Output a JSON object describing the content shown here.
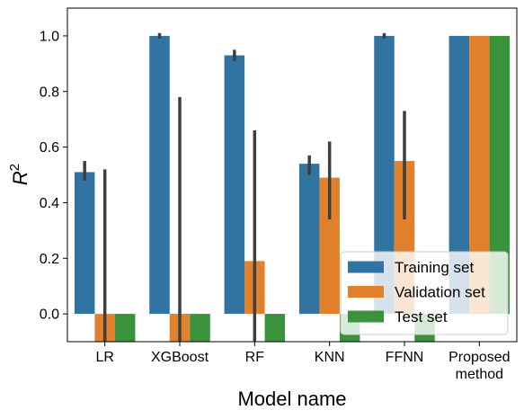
{
  "chart_data": {
    "type": "bar",
    "xlabel": "Model name",
    "ylabel": "R",
    "ylabel_sup": "2",
    "ylim": [
      -0.1,
      1.1
    ],
    "yticks": [
      "0.0",
      "0.2",
      "0.4",
      "0.6",
      "0.8",
      "1.0"
    ],
    "categories": [
      "LR",
      "XGBoost",
      "RF",
      "KNN",
      "FFNN",
      "Proposed method"
    ],
    "category_lines": [
      [
        "LR"
      ],
      [
        "XGBoost"
      ],
      [
        "RF"
      ],
      [
        "KNN"
      ],
      [
        "FFNN"
      ],
      [
        "Proposed",
        "method"
      ]
    ],
    "series": [
      {
        "name": "Training set",
        "color": "#3274a1",
        "values": [
          0.51,
          1.0,
          0.93,
          0.54,
          1.0,
          1.0
        ],
        "errors": [
          [
            0.48,
            0.55
          ],
          [
            0.99,
            1.01
          ],
          [
            0.91,
            0.95
          ],
          [
            0.5,
            0.57
          ],
          [
            0.99,
            1.01
          ],
          null
        ]
      },
      {
        "name": "Validation set",
        "color": "#e1812c",
        "values": [
          -0.1,
          -0.1,
          0.19,
          0.49,
          0.55,
          1.0
        ],
        "errors": [
          [
            -0.1,
            0.52
          ],
          [
            -0.1,
            0.78
          ],
          [
            -0.1,
            0.66
          ],
          [
            0.34,
            0.62
          ],
          [
            0.34,
            0.73
          ],
          null
        ]
      },
      {
        "name": "Test set",
        "color": "#3a923a",
        "values": [
          -0.1,
          -0.1,
          -0.1,
          -0.1,
          -0.1,
          1.0
        ],
        "errors": [
          null,
          null,
          null,
          null,
          null,
          null
        ]
      }
    ],
    "legend": "lower-right",
    "grid": false
  }
}
